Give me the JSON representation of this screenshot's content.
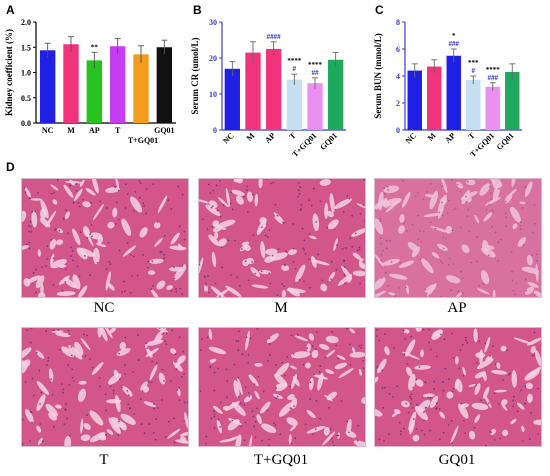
{
  "panels": {
    "a": "A",
    "b": "B",
    "c": "C",
    "d": "D"
  },
  "colors": {
    "NC": "#1f1fe6",
    "M": "#f0337a",
    "AP": "#27c41f",
    "T": "#c6def2",
    "T+GQ01": "#ec8ff0",
    "GQ01": "#1daa5e",
    "T_A": "#c63cf2",
    "T+GQ01_A": "#f59b1d",
    "GQ01_A": "#111111",
    "axis": "#3b3bc6",
    "axisA": "#000000",
    "blueStar": "#2a2ad6",
    "tissueBg": "#d2568a",
    "tissueLight": "#f3d3e4"
  },
  "chart_data": [
    {
      "type": "bar",
      "categories": [
        "NC",
        "M",
        "AP",
        "T",
        "T+GQ01",
        "GQ01"
      ],
      "values": [
        1.44,
        1.56,
        1.24,
        1.52,
        1.36,
        1.5
      ],
      "errors": [
        0.14,
        0.15,
        0.16,
        0.15,
        0.17,
        0.14
      ],
      "ylabel": "Kidney coefficient (%)",
      "ylim": [
        0,
        2.0
      ],
      "yticks": [
        "0.0",
        "0.5",
        "1.0",
        "1.5",
        "2.0"
      ],
      "annotations": [
        {
          "category": "AP",
          "text": "**"
        }
      ]
    },
    {
      "type": "bar",
      "categories": [
        "NC",
        "M",
        "AP",
        "T",
        "T+GQ01",
        "GQ01"
      ],
      "values": [
        17.0,
        21.5,
        22.5,
        14.0,
        13.0,
        19.5
      ],
      "errors": [
        2.0,
        3.0,
        2.0,
        1.5,
        1.5,
        2.0
      ],
      "ylabel": "Serum CR (umol/L)",
      "ylim": [
        0,
        30
      ],
      "yticks": [
        "0",
        "10",
        "20",
        "30"
      ],
      "annotations": [
        {
          "category": "AP",
          "text": "####",
          "color": "blue"
        },
        {
          "category": "T",
          "text": "#",
          "color": "blue"
        },
        {
          "category": "T",
          "text": "****",
          "color": "black"
        },
        {
          "category": "T+GQ01",
          "text": "##",
          "color": "blue"
        },
        {
          "category": "T+GQ01",
          "text": "****",
          "color": "black"
        }
      ]
    },
    {
      "type": "bar",
      "categories": [
        "NC",
        "M",
        "AP",
        "T",
        "T+GQ01",
        "GQ01"
      ],
      "values": [
        4.4,
        4.7,
        5.5,
        3.7,
        3.2,
        4.3
      ],
      "errors": [
        0.5,
        0.5,
        0.5,
        0.3,
        0.3,
        0.6
      ],
      "ylabel": "Serum BUN (mmol/L)",
      "ylim": [
        0,
        8
      ],
      "yticks": [
        "0",
        "2",
        "4",
        "6",
        "8"
      ],
      "annotations": [
        {
          "category": "AP",
          "text": "###",
          "color": "blue"
        },
        {
          "category": "AP",
          "text": "*",
          "color": "black"
        },
        {
          "category": "T",
          "text": "#",
          "color": "blue"
        },
        {
          "category": "T",
          "text": "***",
          "color": "black"
        },
        {
          "category": "T+GQ01",
          "text": "###",
          "color": "blue"
        },
        {
          "category": "T+GQ01",
          "text": "****",
          "color": "black"
        }
      ]
    }
  ],
  "micrographs": [
    {
      "caption": "NC"
    },
    {
      "caption": "M"
    },
    {
      "caption": "AP"
    },
    {
      "caption": "T"
    },
    {
      "caption": "T+GQ01"
    },
    {
      "caption": "GQ01"
    }
  ]
}
